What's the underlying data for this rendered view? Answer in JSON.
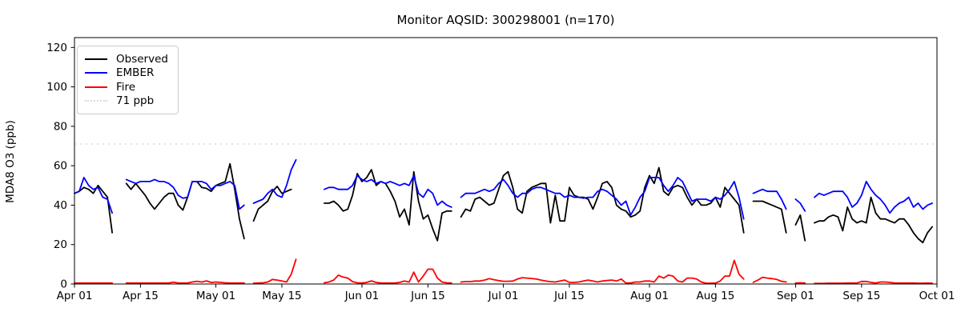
{
  "figure": {
    "title": "Monitor AQSID: 300298001 (n=170)",
    "ylabel": "MDA8 O3 (ppb)"
  },
  "legend": {
    "items": [
      {
        "label": "Observed",
        "style": "solid",
        "color": "#000000"
      },
      {
        "label": "EMBER",
        "style": "solid",
        "color": "#0000ff"
      },
      {
        "label": "Fire",
        "style": "solid",
        "color": "#ff0000"
      },
      {
        "label": "71 ppb",
        "style": "dotted",
        "color": "#d9d9d9"
      }
    ]
  },
  "chart_data": {
    "type": "line",
    "title": "Monitor AQSID: 300298001 (n=170)",
    "xlabel": "",
    "ylabel": "MDA8 O3 (ppb)",
    "x_axis": "daily dates, Apr 01 through Oct 01 (day index 0..183)",
    "x_tick_days": [
      0,
      14,
      30,
      44,
      61,
      75,
      91,
      105,
      122,
      136,
      153,
      167,
      183
    ],
    "x_tick_labels": [
      "Apr 01",
      "Apr 15",
      "May 01",
      "May 15",
      "Jun 01",
      "Jun 15",
      "Jul 01",
      "Jul 15",
      "Aug 01",
      "Aug 15",
      "Sep 01",
      "Sep 15",
      "Oct 01"
    ],
    "y_ticks": [
      0,
      20,
      40,
      60,
      80,
      100,
      120
    ],
    "ylim": [
      0,
      125
    ],
    "xlim_days": [
      0,
      183
    ],
    "grid": false,
    "legend_position": "upper left",
    "threshold": {
      "label": "71 ppb",
      "value": 71,
      "style": "dotted",
      "color": "#d9d9d9"
    },
    "series": [
      {
        "name": "Observed",
        "color": "#000000",
        "values": [
          46,
          47,
          49,
          48,
          46,
          50,
          47,
          44,
          26,
          null,
          null,
          51,
          48,
          51,
          48,
          45,
          41,
          38,
          41,
          44,
          46,
          46,
          40,
          37.5,
          44,
          52,
          52,
          49,
          48.5,
          47,
          50,
          51,
          52,
          61,
          48,
          33,
          23,
          null,
          32,
          38,
          40,
          42,
          47,
          49.5,
          46,
          47,
          48,
          null,
          null,
          null,
          null,
          null,
          null,
          41,
          41,
          42,
          40,
          37,
          38,
          45,
          56,
          52,
          54,
          58,
          50,
          52,
          51,
          47,
          42,
          34,
          38,
          30,
          57,
          42,
          33,
          35,
          28,
          22,
          36,
          37,
          37,
          null,
          34,
          38,
          37,
          43,
          44,
          42,
          40,
          41,
          48,
          55,
          57,
          49,
          38,
          36,
          47,
          49,
          50,
          51,
          51,
          31,
          45,
          32,
          32,
          49,
          45,
          44,
          44,
          43,
          38,
          44,
          51,
          52,
          49,
          40,
          38,
          37,
          34,
          35,
          37,
          49,
          55,
          51,
          59,
          47,
          45,
          49,
          50,
          49,
          44,
          40,
          43,
          40,
          40,
          41,
          44,
          39,
          49,
          46,
          43,
          40,
          26,
          null,
          42,
          42,
          42,
          41,
          40,
          39,
          38,
          26,
          null,
          30,
          35,
          22,
          null,
          31,
          32,
          32,
          34,
          35,
          34,
          27,
          39,
          33,
          31,
          32,
          31,
          44,
          36,
          33,
          33,
          32,
          31,
          33,
          33,
          30,
          26,
          23,
          21,
          26,
          29,
          null
        ]
      },
      {
        "name": "EMBER",
        "color": "#0000ff",
        "values": [
          46,
          47,
          54,
          50,
          48,
          49,
          44,
          43,
          36,
          null,
          null,
          53,
          52,
          51,
          52,
          52,
          52,
          53,
          52,
          52,
          51,
          49,
          45,
          43.5,
          44,
          52,
          52,
          52,
          51,
          48,
          50,
          50,
          51,
          52,
          50,
          38,
          40,
          null,
          41,
          42,
          43,
          46,
          48,
          45,
          44,
          50,
          58,
          63,
          null,
          null,
          null,
          null,
          null,
          48,
          49,
          49,
          48,
          48,
          48,
          50,
          55,
          53,
          52,
          53,
          51,
          52,
          51,
          52,
          51,
          50,
          51,
          50,
          55,
          46,
          44,
          48,
          46,
          40,
          42,
          40,
          39,
          null,
          44,
          46,
          46,
          46,
          47,
          48,
          47,
          48,
          51,
          53,
          50,
          46,
          44,
          46,
          46,
          48,
          49,
          49,
          48,
          47,
          46,
          46,
          44,
          45,
          44,
          44,
          43.5,
          44,
          44,
          47,
          48,
          47,
          45,
          43,
          40,
          42,
          35,
          39,
          44,
          47,
          54,
          54,
          54,
          50,
          47,
          50,
          54,
          52,
          47,
          42,
          43,
          43,
          43,
          42,
          44,
          43,
          45,
          48,
          52,
          44,
          33,
          null,
          46,
          47,
          48,
          47,
          47,
          47,
          43,
          38,
          null,
          43,
          41,
          37,
          null,
          44,
          46,
          45,
          46,
          47,
          47,
          47,
          44,
          39,
          41,
          45,
          52,
          48,
          45,
          43,
          40,
          36,
          39,
          41,
          42,
          44,
          39,
          41,
          38,
          40,
          41,
          null
        ]
      },
      {
        "name": "Fire",
        "color": "#ff0000",
        "values": [
          0.5,
          0.5,
          0.5,
          0.5,
          0.5,
          0.5,
          0.5,
          0.5,
          0.5,
          null,
          null,
          0.5,
          0.5,
          0.5,
          0.5,
          0.5,
          0.5,
          0.5,
          0.5,
          0.5,
          0.5,
          0.9,
          0.5,
          0.5,
          0.5,
          1.0,
          1.4,
          1.0,
          1.6,
          0.8,
          1.0,
          0.8,
          0.6,
          0.5,
          0.5,
          0.5,
          0.5,
          null,
          0.4,
          0.5,
          0.6,
          1.0,
          2.3,
          2.0,
          1.5,
          1.0,
          5.0,
          12.5,
          null,
          null,
          null,
          null,
          null,
          0.6,
          1.0,
          2.0,
          4.5,
          3.5,
          3.0,
          1.2,
          0.6,
          0.5,
          0.8,
          1.6,
          0.8,
          0.5,
          0.5,
          0.5,
          0.5,
          0.8,
          1.5,
          1.0,
          6.0,
          1.0,
          4.0,
          7.5,
          7.5,
          3.0,
          1.0,
          0.6,
          0.5,
          null,
          1.0,
          1.2,
          1.2,
          1.5,
          1.5,
          2.0,
          2.7,
          2.2,
          1.7,
          1.4,
          1.4,
          1.5,
          2.5,
          3.2,
          3.0,
          2.8,
          2.5,
          2.0,
          1.5,
          1.2,
          1.0,
          1.5,
          2.0,
          0.8,
          0.8,
          1.0,
          1.5,
          2.0,
          1.5,
          1.0,
          1.5,
          1.8,
          2.0,
          1.5,
          2.5,
          0.5,
          0.5,
          1.0,
          1.0,
          1.5,
          1.5,
          1.0,
          4.0,
          3.0,
          4.5,
          4.0,
          1.5,
          1.0,
          3.0,
          3.0,
          2.5,
          1.0,
          0.4,
          0.4,
          0.5,
          1.5,
          4.0,
          4.0,
          12.0,
          5.0,
          2.5,
          null,
          0.8,
          2.0,
          3.4,
          3.0,
          2.7,
          2.3,
          1.4,
          1.0,
          null,
          0.5,
          0.6,
          0.5,
          null,
          0.3,
          0.3,
          0.3,
          0.4,
          0.4,
          0.4,
          0.4,
          0.5,
          0.5,
          0.5,
          1.3,
          1.3,
          0.8,
          0.5,
          1.0,
          1.0,
          0.8,
          0.5,
          0.5,
          0.5,
          0.5,
          0.5,
          0.4,
          0.4,
          0.5,
          0.4,
          null
        ]
      }
    ]
  }
}
